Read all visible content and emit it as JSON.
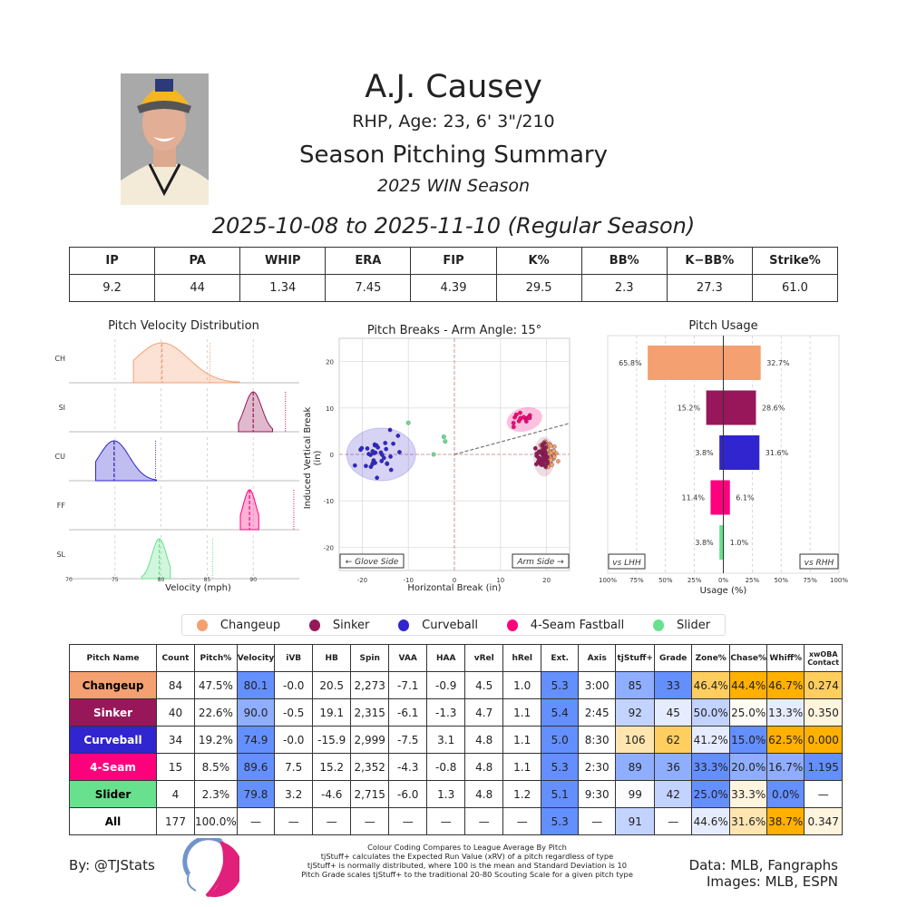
{
  "header": {
    "player_name": "A.J. Causey",
    "bio": "RHP, Age: 23, 6' 3\"/210",
    "summary_title": "Season Pitching Summary",
    "season_label": "2025 WIN Season",
    "date_range": "2025-10-08 to 2025-11-10 (Regular Season)"
  },
  "season_stats": {
    "headers": [
      "IP",
      "PA",
      "WHIP",
      "ERA",
      "FIP",
      "K%",
      "BB%",
      "K−BB%",
      "Strike%"
    ],
    "values": [
      "9.2",
      "44",
      "1.34",
      "7.45",
      "4.39",
      "29.5",
      "2.3",
      "27.3",
      "61.0"
    ]
  },
  "pitch_colors": {
    "Changeup": "#F4A070",
    "Sinker": "#97175A",
    "Curveball": "#3025CE",
    "4-Seam Fastball": "#FF007D",
    "Slider": "#67E18D"
  },
  "chart_data": [
    {
      "type": "area",
      "title": "Pitch Velocity Distribution",
      "xlabel": "Velocity (mph)",
      "xlim": [
        70,
        95
      ],
      "xticks": [
        "70",
        "75",
        "80",
        "85",
        "90"
      ],
      "rows": [
        {
          "label": "CH",
          "mean": 80.1,
          "range": [
            77.0,
            88.5
          ],
          "league_avg": 85.3
        },
        {
          "label": "SI",
          "mean": 90.0,
          "range": [
            88.4,
            92.1
          ],
          "league_avg": 93.5
        },
        {
          "label": "CU",
          "mean": 74.9,
          "range": [
            72.9,
            79.5
          ],
          "league_avg": 79.4
        },
        {
          "label": "FF",
          "mean": 89.6,
          "range": [
            88.6,
            90.6
          ],
          "league_avg": 94.4
        },
        {
          "label": "SL",
          "mean": 79.8,
          "range": [
            77.9,
            81.0
          ],
          "league_avg": 85.6
        }
      ]
    },
    {
      "type": "scatter",
      "title": "Pitch Breaks - Arm Angle: 15°",
      "xlabel": "Horizontal Break (in)",
      "ylabel": "Induced Vertical Break (in)",
      "xlim": [
        -25,
        25
      ],
      "ylim": [
        -25,
        25
      ],
      "xticks": [
        "-20",
        "-10",
        "0",
        "10",
        "20"
      ],
      "yticks": [
        "20",
        "10",
        "0",
        "-10",
        "-20"
      ],
      "annotations": [
        "← Glove Side",
        "Arm Side →"
      ],
      "series": [
        {
          "name": "Curveball",
          "center": [
            -15.9,
            0.0
          ],
          "spread": [
            7.5,
            5.8
          ]
        },
        {
          "name": "Changeup",
          "center": [
            20.5,
            0.0
          ],
          "spread": [
            2.5,
            4.0
          ]
        },
        {
          "name": "Sinker",
          "center": [
            19.1,
            -0.5
          ],
          "spread": [
            2.0,
            4.0
          ]
        },
        {
          "name": "4-Seam Fastball",
          "center": [
            15.2,
            7.5
          ],
          "spread": [
            3.8,
            2.5
          ]
        },
        {
          "name": "Slider",
          "center": [
            -4.6,
            3.2
          ],
          "spread": [
            0,
            0
          ]
        }
      ]
    },
    {
      "type": "bar",
      "title": "Pitch Usage",
      "xlabel": "Usage (%)",
      "xticks": [
        "100%",
        "75%",
        "50%",
        "25%",
        "0%",
        "25%",
        "50%",
        "75%",
        "100%"
      ],
      "left_label": "vs LHH",
      "right_label": "vs RHH",
      "categories": [
        "Changeup",
        "Sinker",
        "Curveball",
        "4-Seam Fastball",
        "Slider"
      ],
      "series": [
        {
          "name": "vs LHH",
          "values": [
            65.8,
            15.2,
            3.8,
            11.4,
            3.8
          ]
        },
        {
          "name": "vs RHH",
          "values": [
            32.7,
            28.6,
            31.6,
            6.1,
            1.0
          ]
        }
      ]
    }
  ],
  "legend": [
    "Changeup",
    "Sinker",
    "Curveball",
    "4-Seam Fastball",
    "Slider"
  ],
  "pitch_table": {
    "headers": [
      "Pitch Name",
      "Count",
      "Pitch%",
      "Velocity",
      "iVB",
      "HB",
      "Spin",
      "VAA",
      "HAA",
      "vRel",
      "hRel",
      "Ext.",
      "Axis",
      "tjStuff+",
      "Grade",
      "Zone%",
      "Chase%",
      "Whiff%",
      "xwOBA Contact"
    ],
    "rows": [
      {
        "name": "Changeup",
        "cells": [
          "84",
          "47.5%",
          "80.1",
          "-0.0",
          "20.5",
          "2,273",
          "-7.1",
          "-0.9",
          "4.5",
          "1.0",
          "5.3",
          "3:00",
          "85",
          "33",
          "46.4%",
          "44.4%",
          "46.7%",
          "0.274"
        ]
      },
      {
        "name": "Sinker",
        "cells": [
          "40",
          "22.6%",
          "90.0",
          "-0.5",
          "19.1",
          "2,315",
          "-6.1",
          "-1.3",
          "4.7",
          "1.1",
          "5.4",
          "2:45",
          "92",
          "45",
          "50.0%",
          "25.0%",
          "13.3%",
          "0.350"
        ]
      },
      {
        "name": "Curveball",
        "cells": [
          "34",
          "19.2%",
          "74.9",
          "-0.0",
          "-15.9",
          "2,999",
          "-7.5",
          "3.1",
          "4.8",
          "1.1",
          "5.0",
          "8:30",
          "106",
          "62",
          "41.2%",
          "15.0%",
          "62.5%",
          "0.000"
        ]
      },
      {
        "name": "4-Seam",
        "cells": [
          "15",
          "8.5%",
          "89.6",
          "7.5",
          "15.2",
          "2,352",
          "-4.3",
          "-0.8",
          "4.8",
          "1.1",
          "5.3",
          "2:30",
          "89",
          "36",
          "33.3%",
          "20.0%",
          "16.7%",
          "1.195"
        ]
      },
      {
        "name": "Slider",
        "cells": [
          "4",
          "2.3%",
          "79.8",
          "3.2",
          "-4.6",
          "2,715",
          "-6.0",
          "1.3",
          "4.8",
          "1.2",
          "5.1",
          "9:30",
          "99",
          "42",
          "25.0%",
          "33.3%",
          "0.0%",
          "—"
        ]
      },
      {
        "name": "All",
        "cells": [
          "177",
          "100.0%",
          "—",
          "—",
          "—",
          "—",
          "—",
          "—",
          "—",
          "—",
          "5.3",
          "—",
          "91",
          "—",
          "44.6%",
          "31.6%",
          "38.7%",
          "0.347"
        ]
      }
    ]
  },
  "footer": {
    "byline": "By: @TJStats",
    "notes": [
      "Colour Coding Compares to League Average By Pitch",
      "tjStuff+ calculates the Expected Run Value (xRV) of a pitch regardless of type",
      "tjStuff+ is normally distributed, where 100 is the mean and Standard Deviation is 10",
      "Pitch Grade scales tjStuff+ to the traditional 20-80 Scouting Scale for a given pitch type"
    ],
    "data_source": "Data: MLB, Fangraphs",
    "image_source": "Images: MLB, ESPN"
  }
}
